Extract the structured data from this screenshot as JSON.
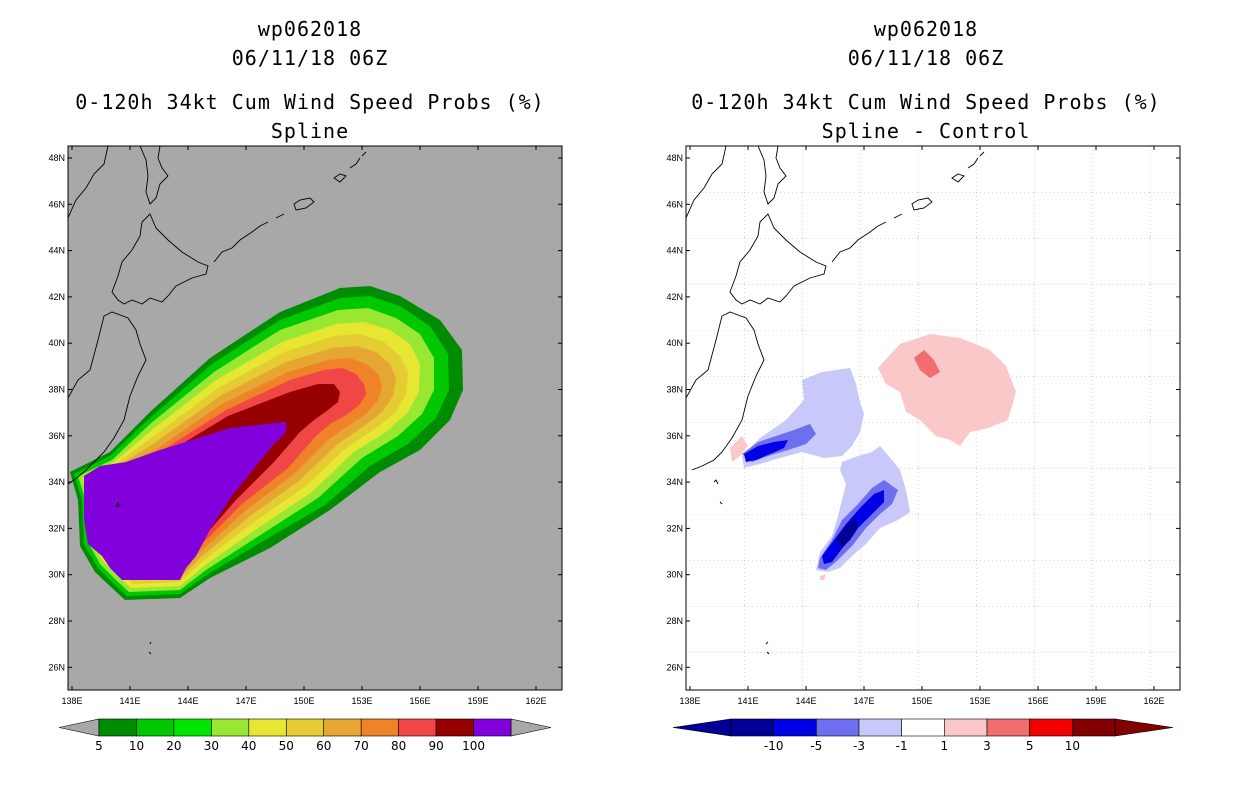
{
  "left_panel": {
    "storm_id": "wp062018",
    "datetime": "06/11/18 06Z",
    "product": "0-120h 34kt Cum Wind Speed Probs (%)",
    "variant": "Spline",
    "colors": {
      "background": "#a8a8a8",
      "coast": "#000000"
    },
    "lat_labels": [
      "48N",
      "46N",
      "44N",
      "42N",
      "40N",
      "38N",
      "36N",
      "34N",
      "32N",
      "30N",
      "28N",
      "26N"
    ],
    "lon_labels": [
      "138E",
      "141E",
      "144E",
      "147E",
      "150E",
      "153E",
      "156E",
      "159E",
      "162E"
    ],
    "colorbar": {
      "levels": [
        "5",
        "10",
        "20",
        "30",
        "40",
        "50",
        "60",
        "70",
        "80",
        "90",
        "100"
      ],
      "colors": [
        "#008c00",
        "#00c800",
        "#00e600",
        "#99e633",
        "#e6e633",
        "#e6cc33",
        "#e6a633",
        "#f08228",
        "#f04646",
        "#960000",
        "#8200dc"
      ],
      "under_color": "#a8a8a8",
      "over_color": "#a8a8a8"
    }
  },
  "right_panel": {
    "storm_id": "wp062018",
    "datetime": "06/11/18 06Z",
    "product": "0-120h 34kt Cum Wind Speed Probs (%)",
    "variant": "Spline - Control",
    "colors": {
      "background": "#ffffff",
      "coast": "#000000"
    },
    "lat_labels": [
      "48N",
      "46N",
      "44N",
      "42N",
      "40N",
      "38N",
      "36N",
      "34N",
      "32N",
      "30N",
      "28N",
      "26N"
    ],
    "lon_labels": [
      "138E",
      "141E",
      "144E",
      "147E",
      "150E",
      "153E",
      "156E",
      "159E",
      "162E"
    ],
    "colorbar": {
      "levels": [
        "-10",
        "-5",
        "-3",
        "-1",
        "1",
        "3",
        "5",
        "10"
      ],
      "colors": [
        "#000096",
        "#0000e6",
        "#6e6ef0",
        "#c8c8fa",
        "#ffffff",
        "#fac8c8",
        "#f06e6e",
        "#f00000",
        "#820000"
      ],
      "under_color": "#000096",
      "over_color": "#820000"
    }
  }
}
